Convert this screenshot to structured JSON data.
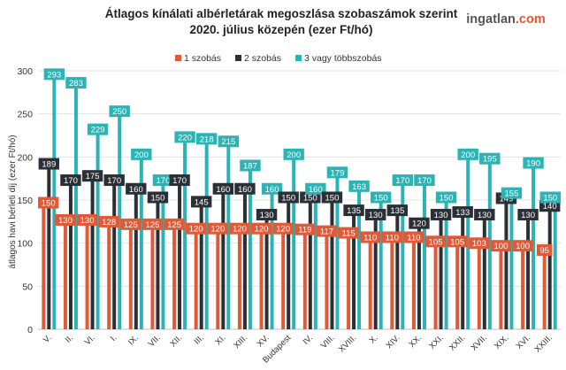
{
  "brand": {
    "name": "ingatlan",
    "suffix": ".com"
  },
  "chart_data": {
    "type": "bar",
    "title": "Átlagos kínálati albérletárak megoszlása szobaszámok szerint",
    "subtitle": "2020. július közepén (ezer Ft/hó)",
    "xlabel": "",
    "ylabel": "átlagos havi bérleti díj (ezer Ft/hó)",
    "ylim": [
      0,
      300
    ],
    "yticks": [
      0,
      50,
      100,
      150,
      200,
      250,
      300
    ],
    "grid": true,
    "legend_position": "top-center",
    "categories": [
      "V.",
      "II.",
      "VI.",
      "I.",
      "IX.",
      "VII.",
      "XII.",
      "III.",
      "XI.",
      "XIII.",
      "XV.",
      "Budapest",
      "IV.",
      "VIII.",
      "XVIII.",
      "X.",
      "XIV.",
      "XX.",
      "XXI.",
      "XXII.",
      "XVII.",
      "XIX.",
      "XVI.",
      "XXIII."
    ],
    "series": [
      {
        "name": "1 szobás",
        "color": "#e05a37",
        "values": [
          150,
          130,
          130,
          128,
          125,
          125,
          125,
          120,
          120,
          120,
          120,
          120,
          119,
          117,
          115,
          110,
          110,
          110,
          105,
          105,
          103,
          100,
          100,
          95
        ]
      },
      {
        "name": "2 szobás",
        "color": "#2b2f36",
        "values": [
          189,
          170,
          175,
          170,
          160,
          150,
          170,
          145,
          160,
          160,
          130,
          150,
          150,
          150,
          135,
          130,
          135,
          120,
          130,
          133,
          130,
          149,
          130,
          140
        ]
      },
      {
        "name": "3 vagy többszobás",
        "color": "#2bb3b5",
        "values": [
          293,
          283,
          229,
          250,
          200,
          170,
          220,
          218,
          215,
          187,
          160,
          200,
          160,
          179,
          163,
          150,
          170,
          170,
          150,
          200,
          195,
          155,
          190,
          150
        ]
      }
    ]
  }
}
